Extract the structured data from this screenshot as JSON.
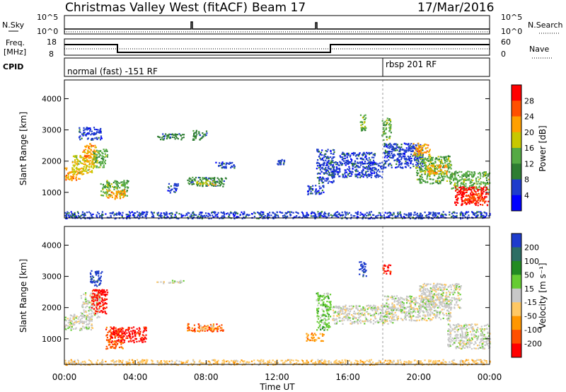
{
  "header": {
    "title": "Christmas Valley West (fitACF)",
    "beam": "Beam 17",
    "date": "17/Mar/2016"
  },
  "top_panels": {
    "nsky_label": "N.Sky",
    "nsky_ticks": [
      "10^5",
      "10^0"
    ],
    "nsearch_label": "N.Search",
    "nsearch_ticks": [
      "10^5",
      "10^0"
    ],
    "freq_label_1": "Freq.",
    "freq_label_2": "[MHz]",
    "freq_ticks": [
      "18",
      "8"
    ],
    "nave_label": "Nave",
    "nave_ticks": [
      "60",
      "0"
    ],
    "cpid_label": "CPID",
    "cpid_segments": [
      {
        "label": "normal (fast) -151 RF",
        "start_hour": 0
      },
      {
        "label": "rbsp 201 RF",
        "start_hour": 18
      }
    ],
    "freq_series": [
      {
        "from_hour": 0,
        "to_hour": 3,
        "level": "high"
      },
      {
        "from_hour": 3,
        "to_hour": 15,
        "level": "low"
      },
      {
        "from_hour": 15,
        "to_hour": 24,
        "level": "high"
      }
    ],
    "nave_level": "mid"
  },
  "chart_data": [
    {
      "type": "heatmap",
      "name": "power",
      "xlabel": "",
      "ylabel": "Slant Range [km]",
      "xlim": [
        0,
        24
      ],
      "ylim": [
        180,
        4600
      ],
      "yticks": [
        1000,
        2000,
        3000,
        4000
      ],
      "colorbar_label": "Power [dB]",
      "colorbar_ticks": [
        "28",
        "24",
        "20",
        "16",
        "12",
        "8",
        "4"
      ],
      "colors": [
        "#0000ff",
        "#1e3ccc",
        "#2e7d32",
        "#55aa44",
        "#c8c800",
        "#ffa000",
        "#ff5000",
        "#ff0000"
      ],
      "regions": [
        {
          "x": [
            0.0,
            1.0
          ],
          "y": [
            1400,
            1800
          ],
          "level": 5
        },
        {
          "x": [
            0.4,
            1.7
          ],
          "y": [
            1600,
            2200
          ],
          "level": 4
        },
        {
          "x": [
            1.0,
            1.8
          ],
          "y": [
            2000,
            2600
          ],
          "level": 5
        },
        {
          "x": [
            1.6,
            2.4
          ],
          "y": [
            1800,
            2400
          ],
          "level": 3
        },
        {
          "x": [
            0.8,
            2.1
          ],
          "y": [
            2700,
            3100
          ],
          "level": 1
        },
        {
          "x": [
            2.0,
            3.6
          ],
          "y": [
            900,
            1400
          ],
          "level": 3
        },
        {
          "x": [
            2.4,
            3.4
          ],
          "y": [
            800,
            1100
          ],
          "level": 5
        },
        {
          "x": [
            5.2,
            6.8
          ],
          "y": [
            2700,
            2900
          ],
          "level": 2
        },
        {
          "x": [
            5.8,
            6.4
          ],
          "y": [
            1000,
            1300
          ],
          "level": 1
        },
        {
          "x": [
            6.9,
            9.1
          ],
          "y": [
            1200,
            1500
          ],
          "level": 2
        },
        {
          "x": [
            7.4,
            8.6
          ],
          "y": [
            1250,
            1400
          ],
          "level": 4
        },
        {
          "x": [
            8.5,
            9.6
          ],
          "y": [
            1800,
            2000
          ],
          "level": 1
        },
        {
          "x": [
            7.2,
            8.0
          ],
          "y": [
            2700,
            3000
          ],
          "level": 2
        },
        {
          "x": [
            11.9,
            12.4
          ],
          "y": [
            1900,
            2100
          ],
          "level": 1
        },
        {
          "x": [
            13.7,
            14.6
          ],
          "y": [
            950,
            1250
          ],
          "level": 1
        },
        {
          "x": [
            14.2,
            15.2
          ],
          "y": [
            1300,
            2400
          ],
          "level": 1
        },
        {
          "x": [
            15.1,
            18.0
          ],
          "y": [
            1500,
            2000
          ],
          "level": 1
        },
        {
          "x": [
            15.5,
            17.5
          ],
          "y": [
            1900,
            2300
          ],
          "level": 1
        },
        {
          "x": [
            16.6,
            17.0
          ],
          "y": [
            3000,
            3500
          ],
          "level": 3
        },
        {
          "x": [
            17.9,
            18.4
          ],
          "y": [
            2700,
            3400
          ],
          "level": 3
        },
        {
          "x": [
            18.0,
            20.2
          ],
          "y": [
            1800,
            2600
          ],
          "level": 1
        },
        {
          "x": [
            19.6,
            20.6
          ],
          "y": [
            2200,
            2600
          ],
          "level": 5
        },
        {
          "x": [
            19.8,
            21.8
          ],
          "y": [
            1300,
            2200
          ],
          "level": 3
        },
        {
          "x": [
            20.4,
            21.6
          ],
          "y": [
            1600,
            1900
          ],
          "level": 5
        },
        {
          "x": [
            21.8,
            24.0
          ],
          "y": [
            1100,
            1700
          ],
          "level": 3
        },
        {
          "x": [
            22.0,
            23.9
          ],
          "y": [
            600,
            1200
          ],
          "level": 7
        },
        {
          "x": [
            22.6,
            23.7
          ],
          "y": [
            700,
            1000
          ],
          "level": 6
        },
        {
          "x": [
            0.0,
            24.0
          ],
          "y": [
            180,
            400
          ],
          "level": 1
        }
      ]
    },
    {
      "type": "heatmap",
      "name": "velocity",
      "xlabel": "Time UT",
      "ylabel": "Slant Range [km]",
      "xlim": [
        0,
        24
      ],
      "ylim": [
        180,
        4600
      ],
      "yticks": [
        1000,
        2000,
        3000,
        4000
      ],
      "xticks": [
        "00:00",
        "04:00",
        "08:00",
        "12:00",
        "16:00",
        "20:00",
        "00:00"
      ],
      "colorbar_label": "Velocity [m s⁻¹]",
      "colorbar_ticks": [
        "200",
        "100",
        "50",
        "15",
        "-15",
        "-50",
        "-100",
        "-200"
      ],
      "colors": [
        "#ff0000",
        "#ff5000",
        "#ff9600",
        "#ffc864",
        "#c8c8c8",
        "#66cc33",
        "#228b22",
        "#2d6e64",
        "#1e3ccc"
      ],
      "regions": [
        {
          "x": [
            0.0,
            1.6
          ],
          "y": [
            1300,
            1800
          ],
          "level": 4
        },
        {
          "x": [
            0.9,
            2.0
          ],
          "y": [
            1700,
            2500
          ],
          "level": 4
        },
        {
          "x": [
            1.5,
            2.4
          ],
          "y": [
            1800,
            2600
          ],
          "level": 0
        },
        {
          "x": [
            1.4,
            2.1
          ],
          "y": [
            2700,
            3200
          ],
          "level": 8
        },
        {
          "x": [
            2.3,
            3.3
          ],
          "y": [
            700,
            1400
          ],
          "level": 1
        },
        {
          "x": [
            2.6,
            4.6
          ],
          "y": [
            900,
            1400
          ],
          "level": 0
        },
        {
          "x": [
            6.9,
            9.0
          ],
          "y": [
            1250,
            1500
          ],
          "level": 1
        },
        {
          "x": [
            7.6,
            8.5
          ],
          "y": [
            1300,
            1450
          ],
          "level": 3
        },
        {
          "x": [
            5.2,
            6.7
          ],
          "y": [
            2800,
            2900
          ],
          "level": 4
        },
        {
          "x": [
            13.6,
            14.6
          ],
          "y": [
            950,
            1200
          ],
          "level": 2
        },
        {
          "x": [
            14.2,
            15.0
          ],
          "y": [
            1300,
            2500
          ],
          "level": 5
        },
        {
          "x": [
            15.1,
            18.5
          ],
          "y": [
            1500,
            2100
          ],
          "level": 4
        },
        {
          "x": [
            16.6,
            17.0
          ],
          "y": [
            3000,
            3500
          ],
          "level": 8
        },
        {
          "x": [
            17.9,
            18.4
          ],
          "y": [
            3100,
            3400
          ],
          "level": 0
        },
        {
          "x": [
            18.0,
            21.8
          ],
          "y": [
            1600,
            2400
          ],
          "level": 4
        },
        {
          "x": [
            20.0,
            22.4
          ],
          "y": [
            2000,
            2800
          ],
          "level": 4
        },
        {
          "x": [
            21.6,
            24.0
          ],
          "y": [
            700,
            1500
          ],
          "level": 4
        },
        {
          "x": [
            0.0,
            24.0
          ],
          "y": [
            180,
            350
          ],
          "level": 3
        }
      ]
    }
  ]
}
